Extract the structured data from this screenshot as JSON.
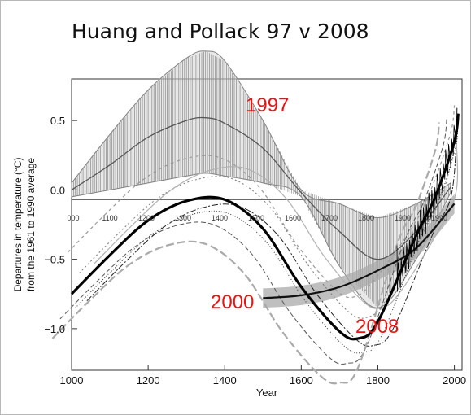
{
  "title": "Huang and Pollack 97 v 2008",
  "chart_data": {
    "type": "line",
    "xlabel": "Year",
    "ylabel": [
      "Departures in temperature (°C)",
      "from the 1961 to 1990 average"
    ],
    "xlim": [
      1000,
      2020
    ],
    "ylim": [
      -1.3,
      0.8
    ],
    "x_ticks": [
      "1000",
      "1200",
      "1400",
      "1600",
      "1800",
      "2000"
    ],
    "y_ticks": [
      "0.5",
      "0.0",
      "−0.5",
      "−1.0"
    ],
    "inset_x_ticks": [
      "000",
      "1100",
      "1200",
      "1300",
      "1400",
      "1500",
      "1600",
      "1700",
      "1800",
      "1900",
      "1990"
    ],
    "annotations": [
      "1997",
      "2000",
      "2008"
    ],
    "colors": {
      "annotation": "#ee1111",
      "main_curve": "#000000",
      "envelope": "#808080",
      "band": "#a9a9a9"
    },
    "series": [
      {
        "label": "1997",
        "x": [
          1000,
          1100,
          1200,
          1300,
          1350,
          1400,
          1500,
          1600,
          1700,
          1800,
          1900,
          1990
        ],
        "values": [
          0.0,
          0.18,
          0.38,
          0.5,
          0.52,
          0.48,
          0.3,
          -0.02,
          -0.3,
          -0.5,
          -0.3,
          0.02
        ],
        "upper": [
          0.05,
          0.4,
          0.72,
          0.95,
          1.0,
          0.93,
          0.5,
          0.0,
          -0.1,
          -0.2,
          -0.1,
          0.05
        ],
        "lower": [
          -0.05,
          0.0,
          0.05,
          0.1,
          0.12,
          0.1,
          0.05,
          -0.05,
          -0.55,
          -0.85,
          -0.5,
          -0.02
        ]
      },
      {
        "label": "2000",
        "x": [
          1500,
          1600,
          1700,
          1800,
          1900,
          2000
        ],
        "values": [
          -0.78,
          -0.76,
          -0.7,
          -0.58,
          -0.42,
          -0.1
        ]
      },
      {
        "label": "2008",
        "x": [
          1000,
          1100,
          1200,
          1300,
          1400,
          1500,
          1600,
          1700,
          1750,
          1800,
          1900,
          1950,
          2000,
          2010
        ],
        "values": [
          -0.75,
          -0.47,
          -0.22,
          -0.08,
          -0.07,
          -0.28,
          -0.7,
          -1.02,
          -1.07,
          -0.95,
          -0.33,
          -0.05,
          0.35,
          0.55
        ]
      }
    ]
  }
}
